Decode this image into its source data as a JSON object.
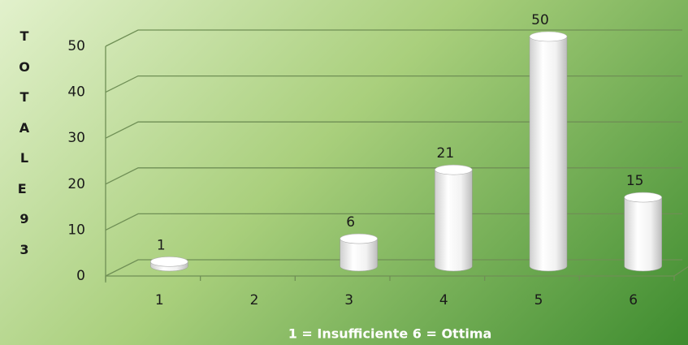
{
  "chart_data": {
    "type": "bar",
    "y_label": "TOTALE 93",
    "x_label": "1 = Insufficiente 6 = Ottima",
    "categories": [
      "1",
      "2",
      "3",
      "4",
      "5",
      "6"
    ],
    "values": [
      1,
      null,
      6,
      21,
      50,
      15
    ],
    "ylim": [
      0,
      50
    ],
    "yticks": [
      0,
      10,
      20,
      30,
      40,
      50
    ],
    "grid": true,
    "color": "#ffffff"
  }
}
